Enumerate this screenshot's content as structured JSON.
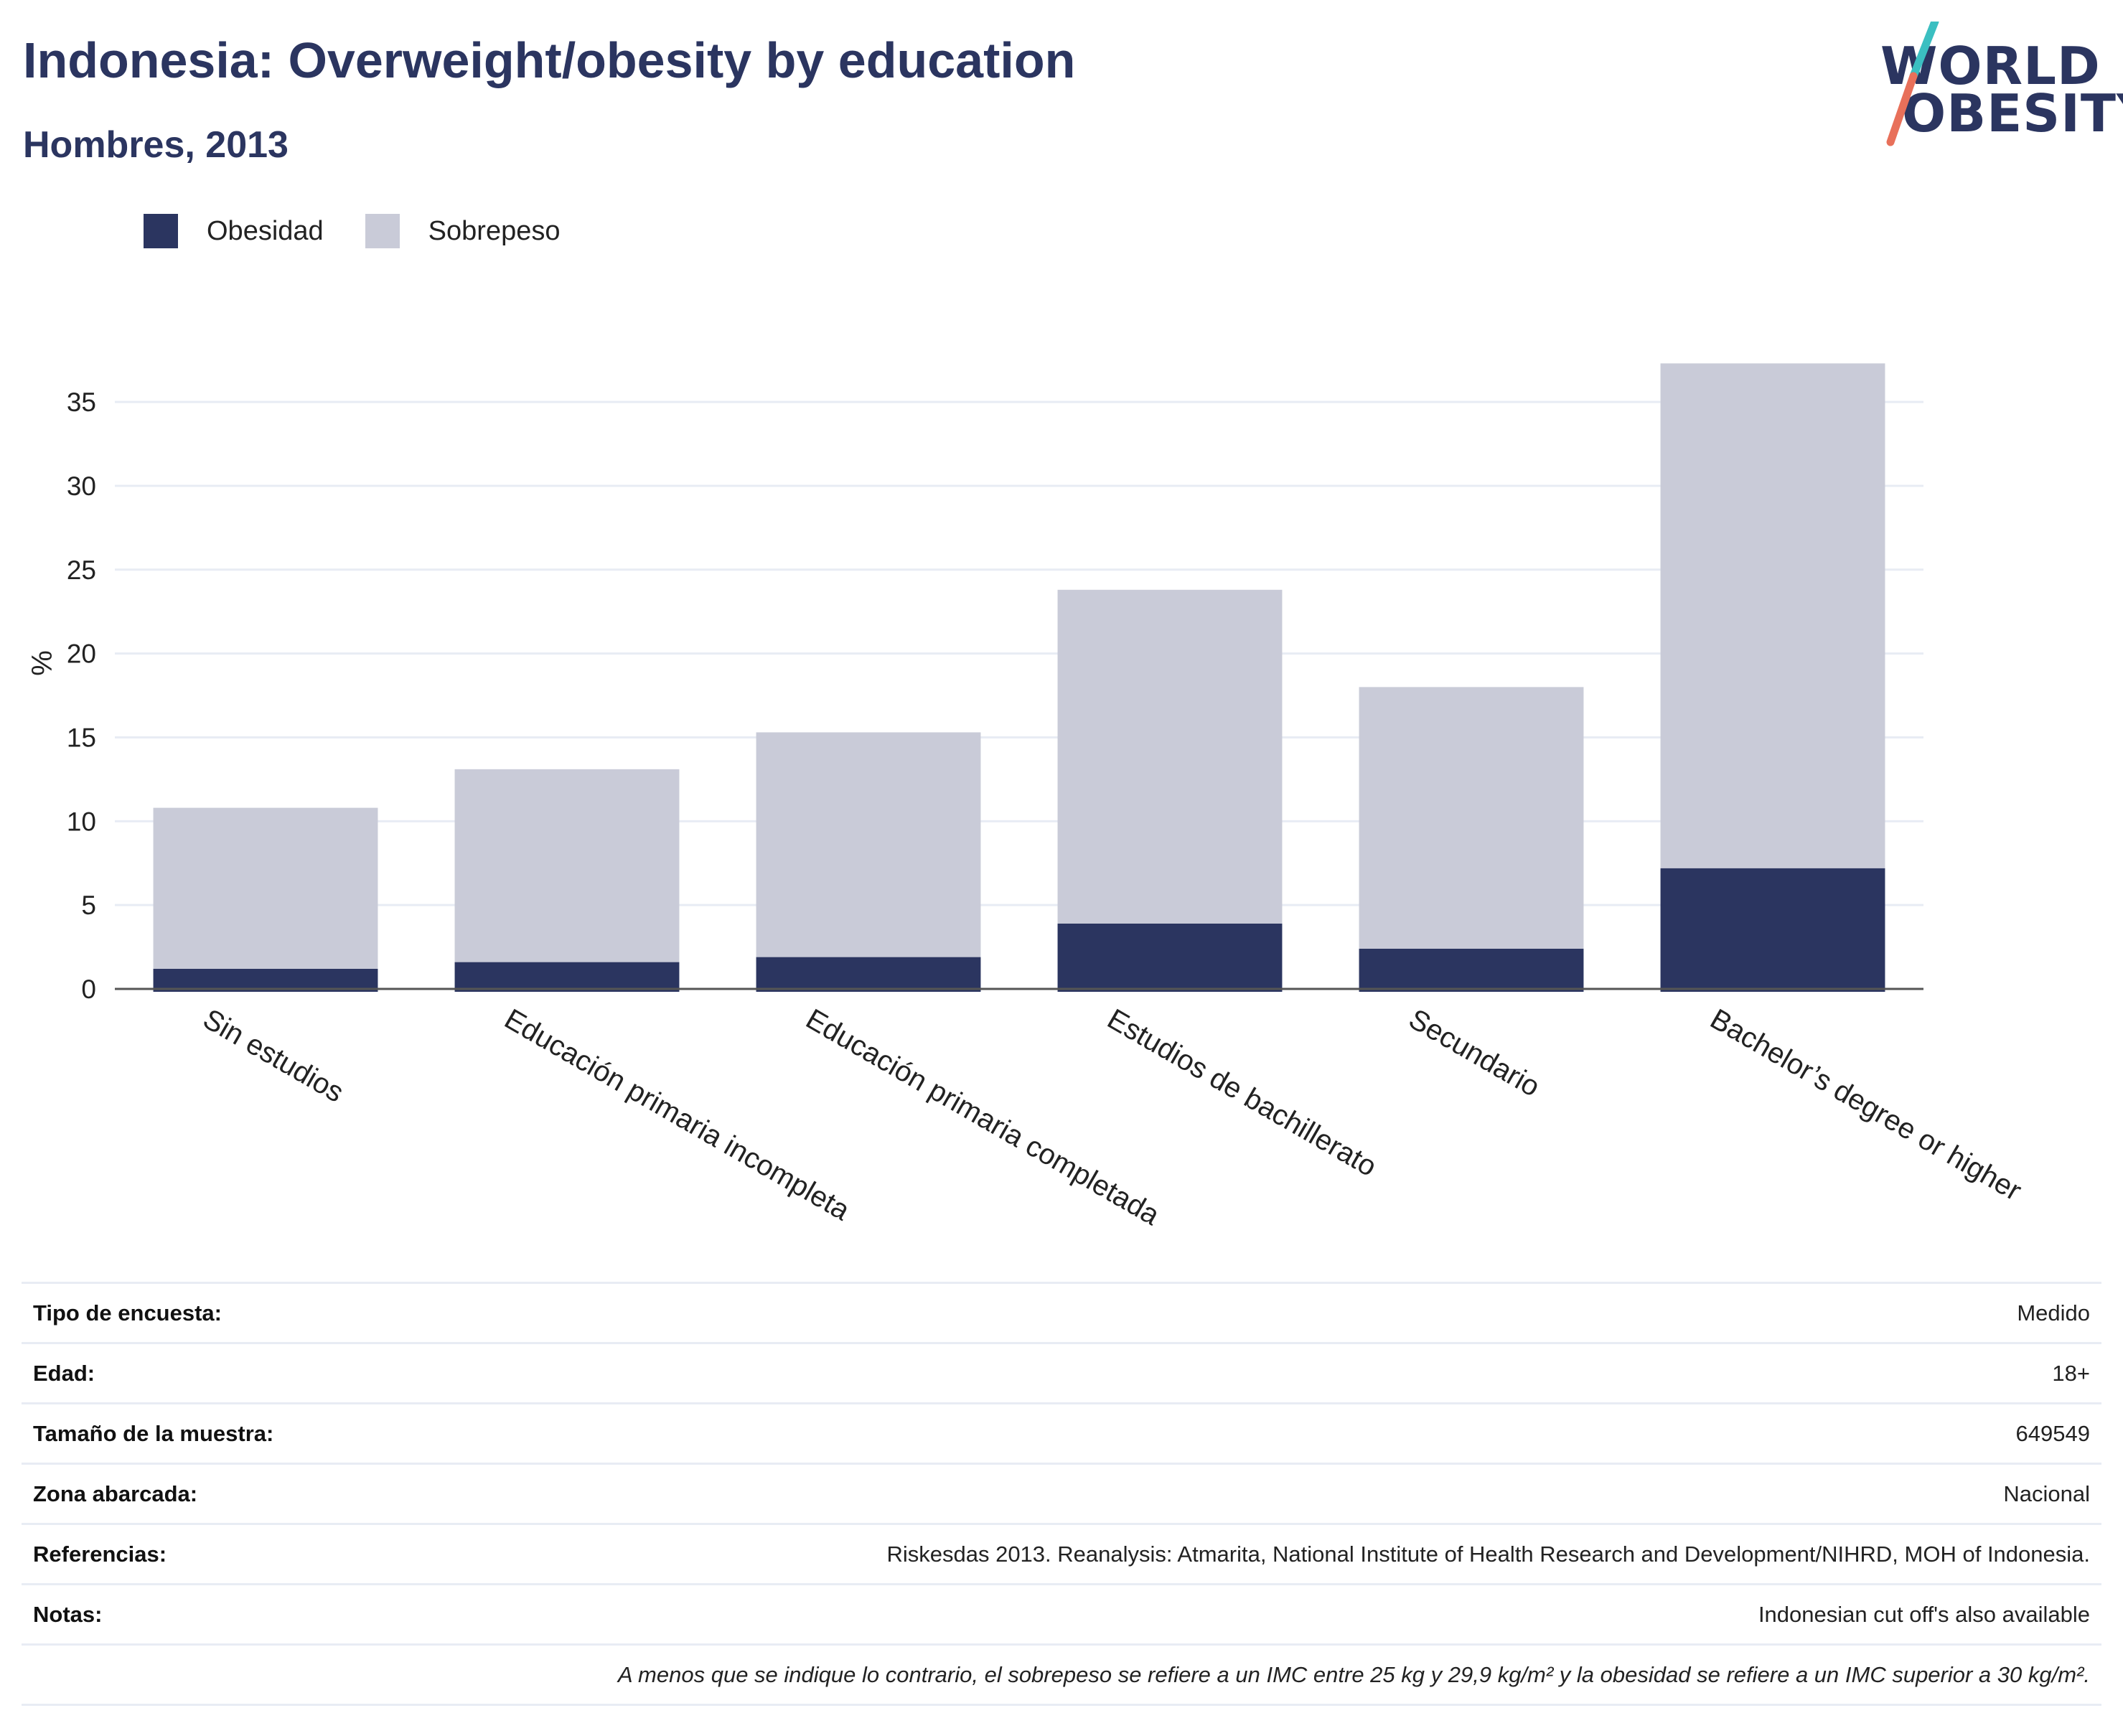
{
  "header": {
    "title": "Indonesia: Overweight/obesity by education",
    "subtitle": "Hombres, 2013"
  },
  "logo": {
    "line1": "WORLD",
    "line2": "OBESITY",
    "colors": {
      "text": "#2b3560",
      "slash_top": "#3bbfc1",
      "slash_bottom": "#e8705a"
    }
  },
  "colors": {
    "obesidad": "#2b3560",
    "sobrepeso": "#c9cbd8",
    "grid": "#e8ecf4",
    "axis": "#555555",
    "title": "#2b3560"
  },
  "chart_data": {
    "type": "bar",
    "stacked": true,
    "ylabel": "%",
    "ylim": [
      0,
      38
    ],
    "yticks": [
      0,
      5,
      10,
      15,
      20,
      25,
      30,
      35
    ],
    "grid": true,
    "legend_position": "top-left",
    "categories": [
      "Sin estudios",
      "Educación primaria incompleta",
      "Educación primaria completada",
      "Estudios de bachillerato",
      "Secundario",
      "Bachelor’s degree or higher"
    ],
    "series": [
      {
        "name": "Obesidad",
        "color": "#2b3560",
        "values": [
          1.2,
          1.6,
          1.9,
          3.9,
          2.4,
          7.2
        ]
      },
      {
        "name": "Sobrepeso",
        "color": "#c9cbd8",
        "values": [
          9.6,
          11.5,
          13.4,
          19.9,
          15.6,
          30.1
        ]
      }
    ]
  },
  "info": {
    "rows": [
      {
        "label": "Tipo de encuesta:",
        "value": "Medido"
      },
      {
        "label": "Edad:",
        "value": "18+"
      },
      {
        "label": "Tamaño de la muestra:",
        "value": "649549"
      },
      {
        "label": "Zona abarcada:",
        "value": "Nacional"
      },
      {
        "label": "Referencias:",
        "value": "Riskesdas 2013. Reanalysis: Atmarita, National Institute of Health Research and Development/NIHRD, MOH of Indonesia."
      },
      {
        "label": "Notas:",
        "value": "Indonesian cut off's also available"
      }
    ],
    "footnote": "A menos que se indique lo contrario, el sobrepeso se refiere a un IMC entre 25 kg y 29,9 kg/m² y la obesidad se refiere a un IMC superior a 30 kg/m²."
  }
}
